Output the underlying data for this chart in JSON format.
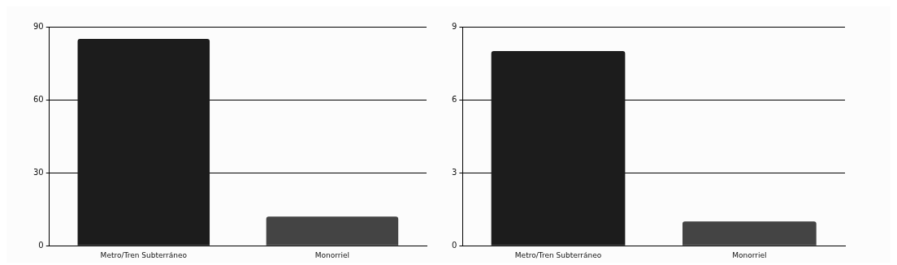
{
  "chart_data": [
    {
      "type": "bar",
      "categories": [
        "Metro/Tren Subterráneo",
        "Monorriel"
      ],
      "values": [
        85,
        12
      ],
      "colors": [
        "#1c1c1c",
        "#444444"
      ],
      "ylim": [
        0,
        90
      ],
      "yticks": [
        0,
        30,
        60,
        90
      ],
      "grid": "y",
      "legend": false
    },
    {
      "type": "bar",
      "categories": [
        "Metro/Tren Subterráneo",
        "Monorriel"
      ],
      "values": [
        8,
        1
      ],
      "colors": [
        "#1c1c1c",
        "#444444"
      ],
      "ylim": [
        0,
        9
      ],
      "yticks": [
        0,
        3,
        6,
        9
      ],
      "grid": "y",
      "legend": false
    }
  ]
}
